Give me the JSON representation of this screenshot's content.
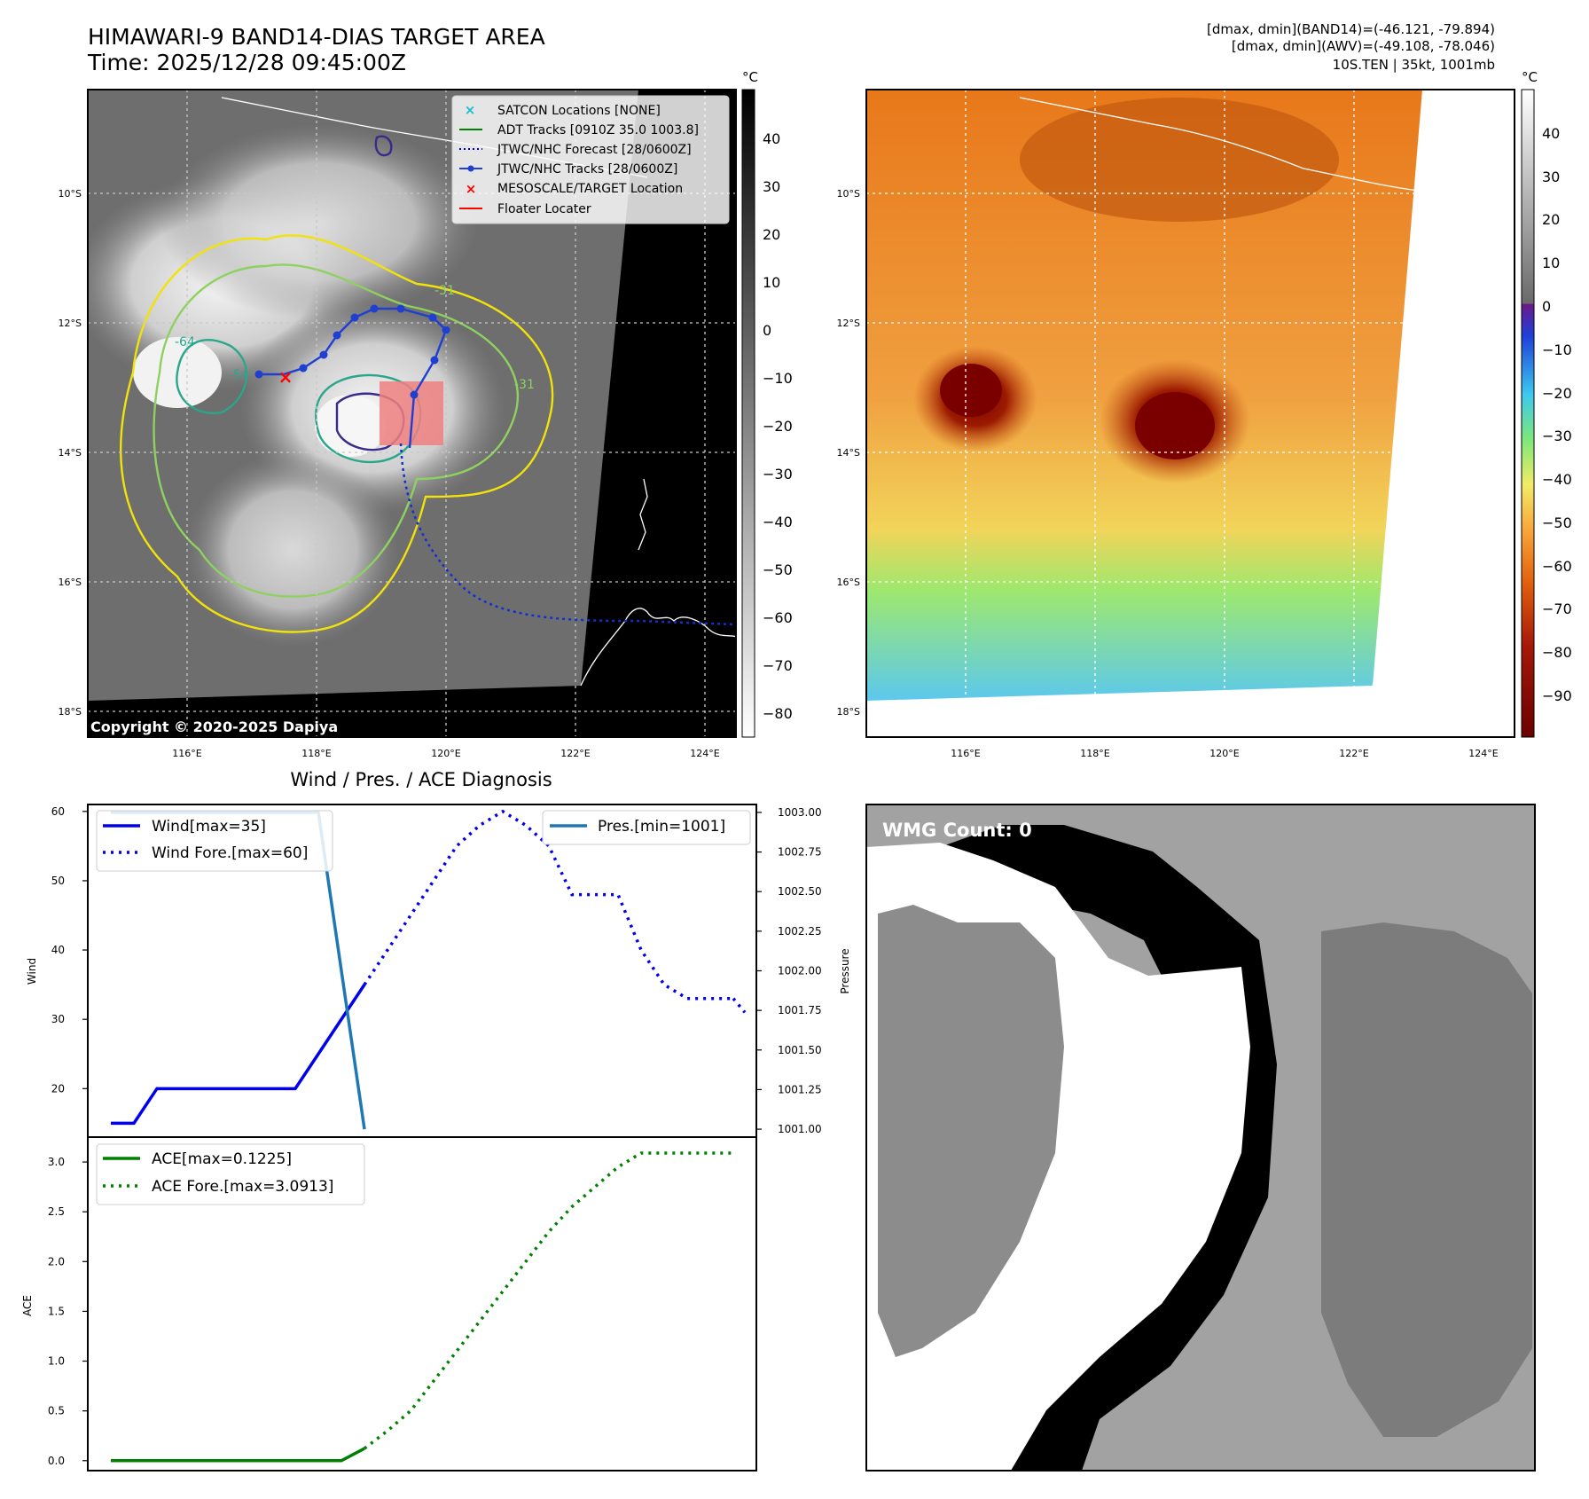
{
  "header": {
    "title_line1": "HIMAWARI-9 BAND14-DIAS TARGET AREA",
    "title_line2": "Time: 2025/12/28 09:45:00Z",
    "stats_line1": "[dmax, dmin](BAND14)=(-46.121, -79.894)",
    "stats_line2": "[dmax, dmin](AWV)=(-49.108, -78.046)",
    "stats_line3": "10S.TEN | 35kt, 1001mb"
  },
  "map_axes": {
    "lat_labels": [
      "10°S",
      "12°S",
      "14°S",
      "16°S",
      "18°S"
    ],
    "lon_labels": [
      "116°E",
      "118°E",
      "120°E",
      "122°E",
      "124°E"
    ],
    "copyright": "Copyright © 2020-2025 Dapiya",
    "contour_labels": [
      "-64",
      "-54",
      "-31",
      "-31"
    ]
  },
  "legend_map": [
    {
      "label": "SATCON Locations [NONE]",
      "color": "#17becf"
    },
    {
      "label": "ADT Tracks [0910Z 35.0 1003.8]",
      "color": "#008000"
    },
    {
      "label": "JTWC/NHC Forecast [28/0600Z]",
      "color": "#0000cc"
    },
    {
      "label": "JTWC/NHC Tracks [28/0600Z]",
      "color": "#1f3fd0"
    },
    {
      "label": "MESOSCALE/TARGET Location",
      "color": "#ff0000"
    },
    {
      "label": "Floater Locater",
      "color": "#ff0000"
    }
  ],
  "colorbar_gray": {
    "unit": "°C",
    "ticks": [
      "40",
      "30",
      "20",
      "10",
      "0",
      "−10",
      "−20",
      "−30",
      "−40",
      "−50",
      "−60",
      "−70",
      "−80"
    ]
  },
  "colorbar_color": {
    "unit": "°C",
    "ticks": [
      "40",
      "30",
      "20",
      "10",
      "0",
      "−10",
      "−20",
      "−30",
      "−40",
      "−50",
      "−60",
      "−70",
      "−80",
      "−90"
    ]
  },
  "wmg": {
    "label": "WMG Count: 0"
  },
  "chart_data": [
    {
      "type": "line",
      "title": "Wind / Pres. / ACE Diagnosis",
      "ylabel": "Wind",
      "y2label": "Pressure",
      "ylim": [
        13,
        61
      ],
      "y2lim": [
        1000.95,
        1003.05
      ],
      "yticks": [
        20,
        30,
        40,
        50,
        60
      ],
      "y2ticks": [
        "1001.00",
        "1001.25",
        "1001.50",
        "1001.75",
        "1002.00",
        "1002.25",
        "1002.50",
        "1002.75",
        "1003.00"
      ],
      "series": [
        {
          "name": "Wind[max=35]",
          "style": "solid",
          "color": "#0000ee",
          "axis": "left",
          "x": [
            0,
            2,
            4,
            16,
            22
          ],
          "y": [
            15,
            15,
            20,
            20,
            35
          ]
        },
        {
          "name": "Wind Fore.[max=60]",
          "style": "dotted",
          "color": "#0000ee",
          "axis": "left",
          "x": [
            22,
            24,
            26,
            28,
            30,
            32,
            34,
            36,
            38,
            40,
            42,
            44,
            46,
            48,
            50,
            52,
            54
          ],
          "y": [
            35,
            40,
            45,
            50,
            55,
            58,
            60,
            58,
            55,
            48,
            48,
            48,
            40,
            35,
            33,
            33,
            33
          ]
        },
        {
          "name": "Pres.[min=1001]",
          "style": "solid",
          "color": "#1f77b4",
          "axis": "right",
          "x": [
            0,
            18,
            22
          ],
          "y": [
            1003.0,
            1003.0,
            1001.0
          ]
        }
      ],
      "extra_points": {
        "x": [
          55
        ],
        "y": [
          31
        ]
      }
    },
    {
      "type": "line",
      "ylabel": "ACE",
      "ylim": [
        -0.1,
        3.25
      ],
      "yticks": [
        "0.0",
        "0.5",
        "1.0",
        "1.5",
        "2.0",
        "2.5",
        "3.0"
      ],
      "series": [
        {
          "name": "ACE[max=0.1225]",
          "style": "solid",
          "color": "#008000",
          "x": [
            0,
            20,
            22
          ],
          "y": [
            0,
            0,
            0.1225
          ]
        },
        {
          "name": "ACE Fore.[max=3.0913]",
          "style": "dotted",
          "color": "#008000",
          "x": [
            22,
            24,
            26,
            28,
            30,
            32,
            34,
            36,
            38,
            40,
            42,
            44,
            46,
            48,
            50,
            52,
            54
          ],
          "y": [
            0.1225,
            0.3,
            0.5,
            0.8,
            1.1,
            1.4,
            1.7,
            2.0,
            2.3,
            2.55,
            2.75,
            2.95,
            3.09,
            3.09,
            3.09,
            3.09,
            3.09
          ]
        }
      ]
    }
  ]
}
